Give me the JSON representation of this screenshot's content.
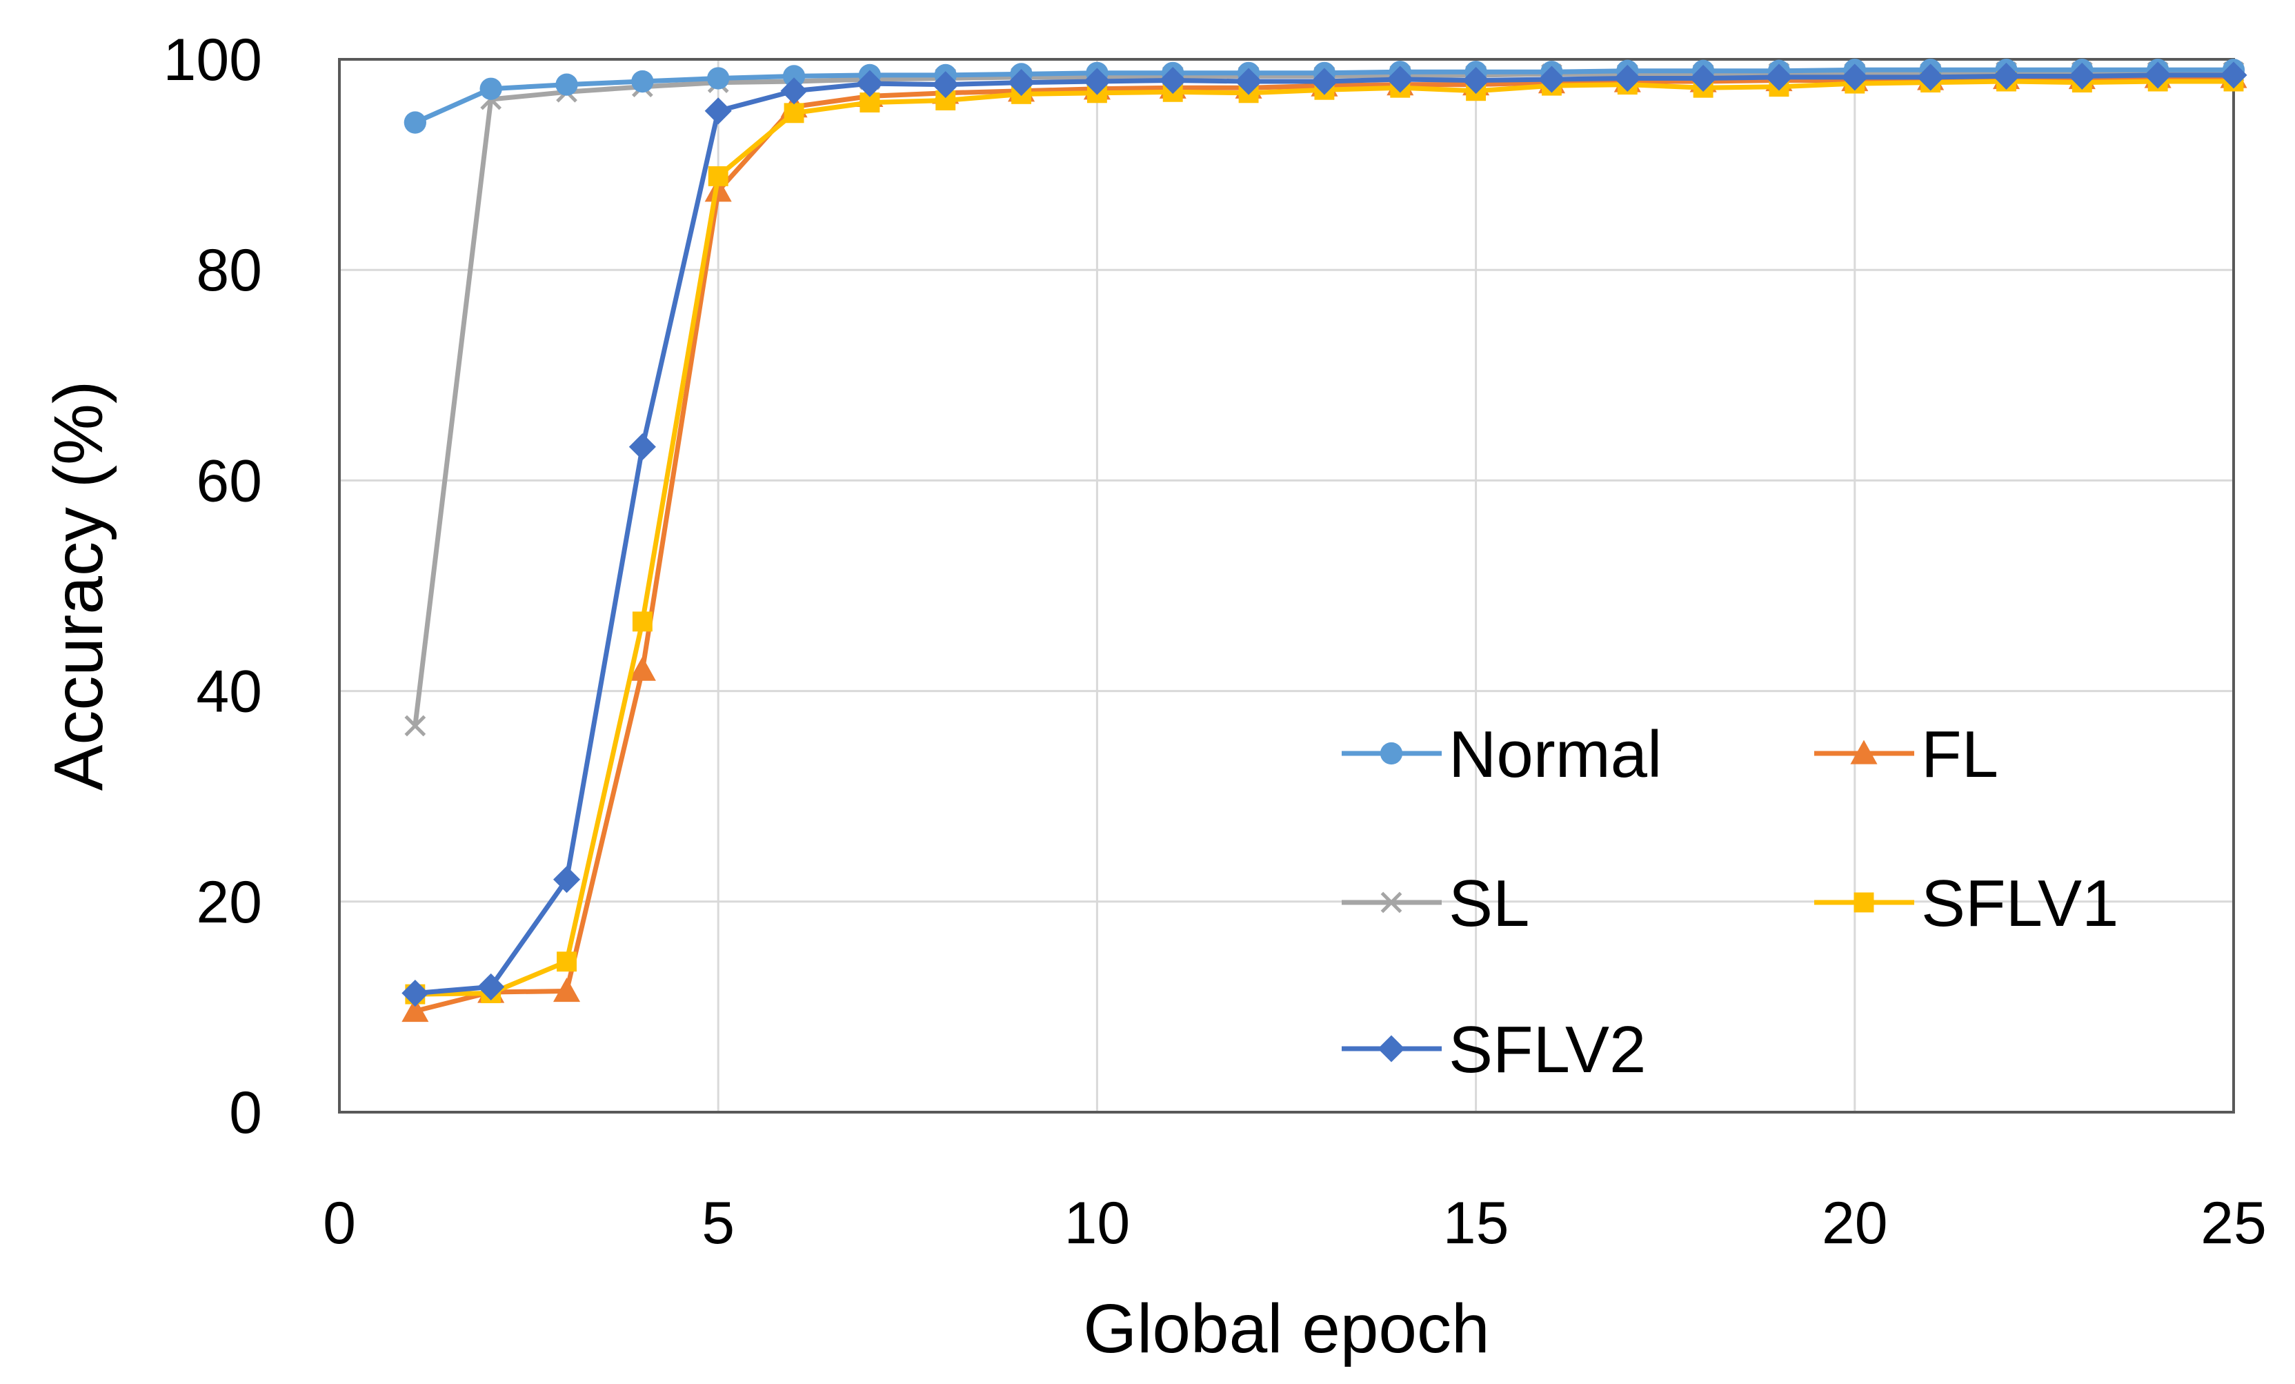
{
  "chart_data": {
    "type": "line",
    "title": "",
    "xlabel": "Global epoch",
    "ylabel": "Accuracy (%)",
    "xlim": [
      0,
      25
    ],
    "ylim": [
      0,
      100
    ],
    "xticks": [
      0,
      5,
      10,
      15,
      20,
      25
    ],
    "yticks": [
      0,
      20,
      40,
      60,
      80,
      100
    ],
    "grid": true,
    "legend": {
      "placement": "lower-right",
      "columns": 2
    },
    "x": [
      1,
      2,
      3,
      4,
      5,
      6,
      7,
      8,
      9,
      10,
      11,
      12,
      13,
      14,
      15,
      16,
      17,
      18,
      19,
      20,
      21,
      22,
      23,
      24,
      25
    ],
    "series": [
      {
        "name": "Normal",
        "color": "#5B9BD5",
        "marker": "circle",
        "values": [
          94.0,
          97.2,
          97.6,
          97.9,
          98.2,
          98.4,
          98.5,
          98.5,
          98.6,
          98.7,
          98.7,
          98.7,
          98.7,
          98.8,
          98.8,
          98.8,
          98.9,
          98.9,
          98.9,
          99.0,
          99.0,
          99.0,
          99.0,
          99.0,
          99.0
        ]
      },
      {
        "name": "FL",
        "color": "#ED7D31",
        "marker": "triangle",
        "values": [
          9.6,
          11.4,
          11.5,
          42.0,
          87.5,
          95.5,
          96.5,
          96.8,
          97.0,
          97.2,
          97.3,
          97.3,
          97.5,
          97.6,
          97.6,
          97.8,
          97.9,
          97.9,
          98.0,
          98.0,
          98.1,
          98.2,
          98.2,
          98.3,
          98.3
        ]
      },
      {
        "name": "SL",
        "color": "#A5A5A5",
        "marker": "x",
        "values": [
          36.7,
          96.2,
          96.9,
          97.4,
          97.8,
          97.9,
          98.1,
          98.2,
          98.3,
          98.3,
          98.4,
          98.4,
          98.4,
          98.5,
          98.5,
          98.6,
          98.6,
          98.6,
          98.7,
          98.7,
          98.7,
          98.8,
          98.8,
          98.8,
          98.8
        ]
      },
      {
        "name": "SFLV1",
        "color": "#FFC000",
        "marker": "square",
        "values": [
          11.2,
          11.3,
          14.3,
          46.6,
          88.9,
          94.9,
          95.9,
          96.1,
          96.7,
          96.8,
          96.9,
          96.8,
          97.1,
          97.3,
          97.0,
          97.5,
          97.6,
          97.3,
          97.4,
          97.7,
          97.8,
          97.9,
          97.8,
          97.9,
          97.9
        ]
      },
      {
        "name": "SFLV2",
        "color": "#4472C4",
        "marker": "diamond",
        "values": [
          11.3,
          11.9,
          22.1,
          63.2,
          95.1,
          97.0,
          97.7,
          97.6,
          97.8,
          97.9,
          98.0,
          97.9,
          97.9,
          98.1,
          98.0,
          98.1,
          98.2,
          98.2,
          98.3,
          98.3,
          98.3,
          98.4,
          98.4,
          98.5,
          98.5
        ]
      }
    ]
  }
}
